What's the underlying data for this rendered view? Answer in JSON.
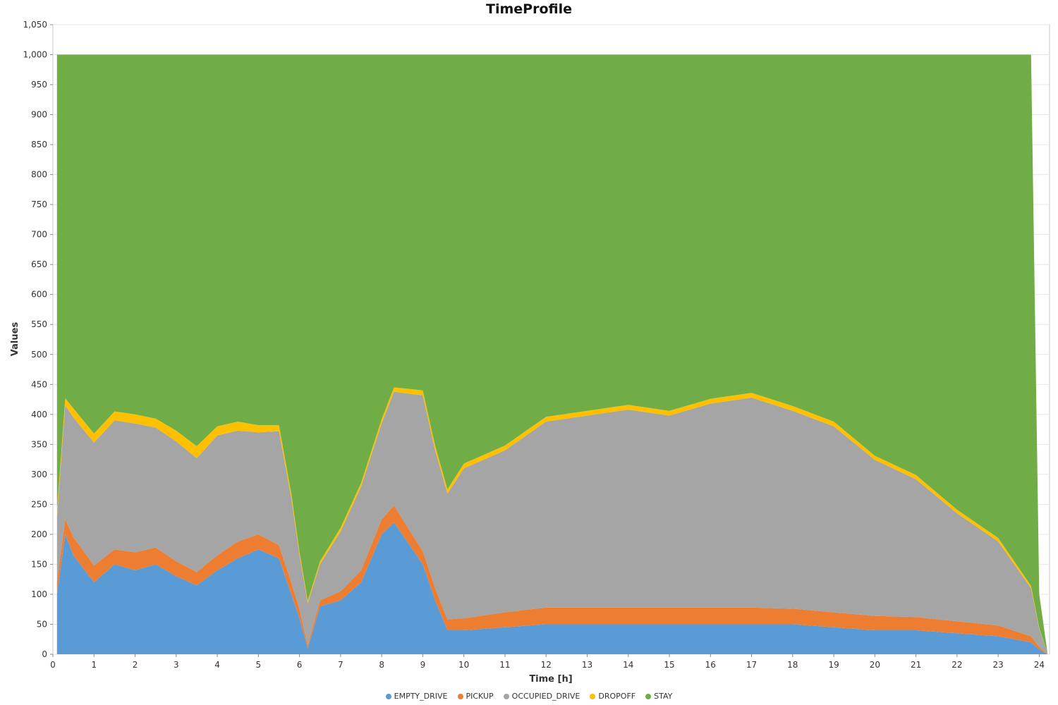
{
  "chart_data": {
    "type": "area",
    "stacked": true,
    "title": "TimeProfile",
    "xlabel": "Time [h]",
    "ylabel": "Values",
    "xlim": [
      0,
      24.25
    ],
    "ylim": [
      0,
      1050
    ],
    "x_ticks": [
      0,
      1,
      2,
      3,
      4,
      5,
      6,
      7,
      8,
      9,
      10,
      11,
      12,
      13,
      14,
      15,
      16,
      17,
      18,
      19,
      20,
      21,
      22,
      23,
      24
    ],
    "y_ticks": [
      0,
      50,
      100,
      150,
      200,
      250,
      300,
      350,
      400,
      450,
      500,
      550,
      600,
      650,
      700,
      750,
      800,
      850,
      900,
      950,
      1000,
      1050
    ],
    "y_tick_labels": [
      "0",
      "50",
      "100",
      "150",
      "200",
      "250",
      "300",
      "350",
      "400",
      "450",
      "500",
      "550",
      "600",
      "650",
      "700",
      "750",
      "800",
      "850",
      "900",
      "950",
      "1,000",
      "1,050"
    ],
    "grid": true,
    "legend_position": "bottom",
    "series": [
      {
        "name": "EMPTY_DRIVE",
        "color": "#5b9bd5",
        "x": [
          0.1,
          0.3,
          0.5,
          1.0,
          1.5,
          2.0,
          2.5,
          3.0,
          3.5,
          4.0,
          4.5,
          5.0,
          5.5,
          5.8,
          6.0,
          6.2,
          6.5,
          7.0,
          7.5,
          8.0,
          8.3,
          8.6,
          9.0,
          9.3,
          9.6,
          10.0,
          11.0,
          12.0,
          13.0,
          14.0,
          15.0,
          16.0,
          17.0,
          18.0,
          19.0,
          20.0,
          21.0,
          22.0,
          23.0,
          23.8,
          24.0,
          24.2
        ],
        "values": [
          100,
          200,
          165,
          120,
          150,
          140,
          150,
          130,
          115,
          140,
          160,
          175,
          160,
          100,
          60,
          10,
          80,
          90,
          120,
          200,
          220,
          190,
          150,
          90,
          40,
          40,
          45,
          50,
          50,
          50,
          50,
          50,
          50,
          50,
          45,
          40,
          40,
          35,
          30,
          20,
          8,
          0
        ]
      },
      {
        "name": "PICKUP",
        "color": "#ed7d31",
        "x": [
          0.1,
          0.3,
          0.5,
          1.0,
          1.5,
          2.0,
          2.5,
          3.0,
          3.5,
          4.0,
          4.5,
          5.0,
          5.5,
          5.8,
          6.0,
          6.2,
          6.5,
          7.0,
          7.5,
          8.0,
          8.3,
          8.6,
          9.0,
          9.3,
          9.6,
          10.0,
          11.0,
          12.0,
          13.0,
          14.0,
          15.0,
          16.0,
          17.0,
          18.0,
          19.0,
          20.0,
          21.0,
          22.0,
          23.0,
          23.8,
          24.0,
          24.2
        ],
        "values": [
          20,
          25,
          30,
          28,
          25,
          30,
          28,
          25,
          22,
          25,
          28,
          25,
          22,
          20,
          15,
          5,
          10,
          15,
          20,
          25,
          28,
          25,
          22,
          20,
          18,
          20,
          25,
          28,
          28,
          28,
          28,
          28,
          28,
          26,
          25,
          24,
          22,
          20,
          18,
          10,
          4,
          0
        ]
      },
      {
        "name": "OCCUPIED_DRIVE",
        "color": "#a5a5a5",
        "x": [
          0.1,
          0.3,
          0.5,
          1.0,
          1.5,
          2.0,
          2.5,
          3.0,
          3.5,
          4.0,
          4.5,
          5.0,
          5.5,
          5.8,
          6.0,
          6.2,
          6.5,
          7.0,
          7.5,
          8.0,
          8.3,
          8.6,
          9.0,
          9.3,
          9.6,
          10.0,
          11.0,
          12.0,
          13.0,
          14.0,
          15.0,
          16.0,
          17.0,
          18.0,
          19.0,
          20.0,
          21.0,
          22.0,
          23.0,
          23.8,
          24.0,
          24.2
        ],
        "values": [
          110,
          190,
          200,
          205,
          215,
          215,
          200,
          200,
          190,
          200,
          185,
          170,
          190,
          140,
          90,
          70,
          60,
          100,
          140,
          160,
          190,
          220,
          260,
          230,
          210,
          250,
          270,
          310,
          320,
          330,
          320,
          340,
          350,
          330,
          310,
          260,
          230,
          180,
          140,
          80,
          30,
          2
        ]
      },
      {
        "name": "DROPOFF",
        "color": "#ffc000",
        "x": [
          0.1,
          0.3,
          0.5,
          1.0,
          1.5,
          2.0,
          2.5,
          3.0,
          3.5,
          4.0,
          4.5,
          5.0,
          5.5,
          5.8,
          6.0,
          6.2,
          6.5,
          7.0,
          7.5,
          8.0,
          8.3,
          8.6,
          9.0,
          9.3,
          9.6,
          10.0,
          11.0,
          12.0,
          13.0,
          14.0,
          15.0,
          16.0,
          17.0,
          18.0,
          19.0,
          20.0,
          21.0,
          22.0,
          23.0,
          23.8,
          24.0,
          24.2
        ],
        "values": [
          10,
          12,
          15,
          15,
          15,
          15,
          15,
          18,
          20,
          15,
          15,
          12,
          10,
          8,
          6,
          4,
          5,
          6,
          6,
          7,
          7,
          8,
          8,
          8,
          7,
          8,
          8,
          8,
          8,
          8,
          8,
          8,
          8,
          8,
          8,
          7,
          7,
          6,
          6,
          4,
          2,
          0
        ]
      },
      {
        "name": "STAY",
        "color": "#70ad47",
        "x": [
          0.1,
          0.3,
          0.5,
          1.0,
          1.5,
          2.0,
          2.5,
          3.0,
          3.5,
          4.0,
          4.5,
          5.0,
          5.5,
          5.8,
          6.0,
          6.2,
          6.5,
          7.0,
          7.5,
          8.0,
          8.3,
          8.6,
          9.0,
          9.3,
          9.6,
          10.0,
          11.0,
          12.0,
          13.0,
          14.0,
          15.0,
          16.0,
          17.0,
          18.0,
          19.0,
          20.0,
          21.0,
          22.0,
          23.0,
          23.8,
          24.0,
          24.2
        ],
        "values": [
          760,
          573,
          590,
          632,
          595,
          600,
          607,
          627,
          653,
          620,
          612,
          618,
          618,
          732,
          829,
          911,
          845,
          789,
          714,
          608,
          555,
          557,
          560,
          652,
          725,
          682,
          652,
          604,
          594,
          584,
          594,
          574,
          564,
          586,
          612,
          669,
          701,
          759,
          806,
          886,
          56,
          0
        ]
      }
    ],
    "series_order_bottom_to_top": [
      "EMPTY_DRIVE",
      "PICKUP",
      "OCCUPIED_DRIVE",
      "DROPOFF",
      "STAY"
    ],
    "legend": [
      "EMPTY_DRIVE",
      "PICKUP",
      "OCCUPIED_DRIVE",
      "DROPOFF",
      "STAY"
    ]
  }
}
